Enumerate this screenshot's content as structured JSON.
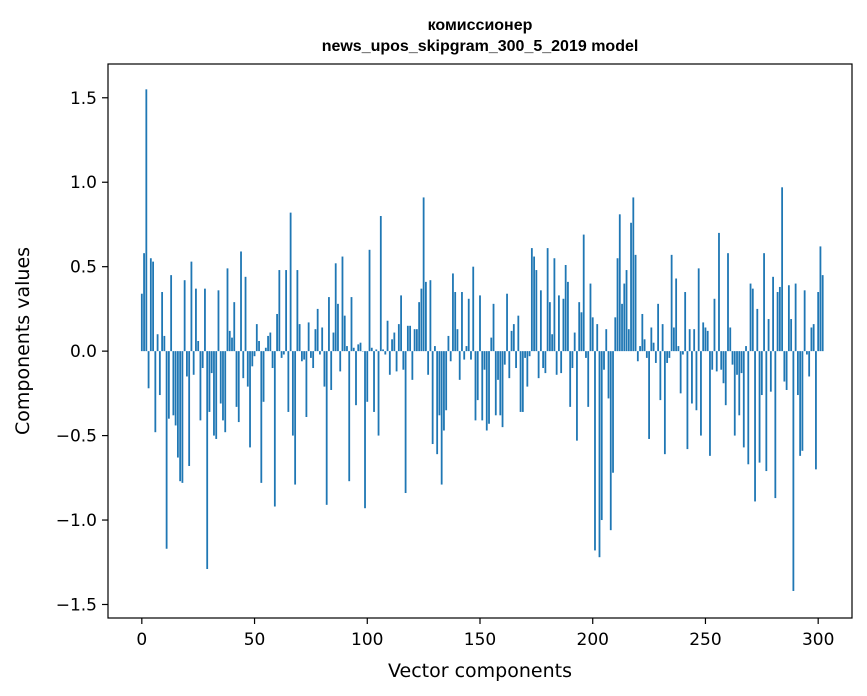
{
  "chart_data": {
    "type": "bar",
    "title_lines": [
      "комиссионер",
      "news_upos_skipgram_300_5_2019 model"
    ],
    "xlabel": "Vector components",
    "ylabel": "Components values",
    "xlim": [
      -15,
      315
    ],
    "ylim": [
      -1.58,
      1.7
    ],
    "xticks": [
      0,
      50,
      100,
      150,
      200,
      250,
      300
    ],
    "yticks": [
      -1.5,
      -1.0,
      -0.5,
      0.0,
      0.5,
      1.0,
      1.5
    ],
    "ytick_labels": [
      "−1.5",
      "−1.0",
      "−0.5",
      "0.0",
      "0.5",
      "1.0",
      "1.5"
    ],
    "bar_color": "#1f77b4",
    "values": [
      0.34,
      0.58,
      1.55,
      -0.22,
      0.55,
      0.53,
      -0.48,
      0.1,
      -0.26,
      0.35,
      0.09,
      -1.17,
      -0.4,
      0.45,
      -0.38,
      -0.44,
      -0.63,
      -0.77,
      -0.78,
      0.42,
      -0.15,
      -0.68,
      0.53,
      -0.14,
      0.37,
      0.06,
      -0.41,
      -0.1,
      0.37,
      -1.29,
      -0.36,
      -0.13,
      -0.5,
      -0.52,
      0.36,
      -0.31,
      -0.41,
      -0.48,
      0.49,
      0.12,
      0.08,
      0.29,
      -0.33,
      -0.42,
      0.59,
      -0.16,
      0.44,
      -0.21,
      -0.57,
      -0.09,
      -0.03,
      0.16,
      0.06,
      -0.78,
      -0.3,
      0.02,
      0.09,
      0.11,
      -0.1,
      -0.92,
      0.22,
      0.48,
      -0.04,
      -0.02,
      0.48,
      -0.36,
      0.82,
      -0.5,
      -0.79,
      0.48,
      0.16,
      -0.06,
      -0.05,
      -0.39,
      0.17,
      -0.04,
      -0.1,
      0.13,
      0.25,
      -0.02,
      0.14,
      -0.21,
      -0.91,
      0.32,
      -0.23,
      0.11,
      0.52,
      0.28,
      -0.12,
      0.56,
      0.21,
      0.03,
      -0.77,
      0.32,
      0.02,
      -0.32,
      0.04,
      0.05,
      0.0,
      -0.93,
      -0.3,
      0.6,
      0.02,
      -0.36,
      0.01,
      -0.5,
      0.8,
      0.01,
      -0.02,
      0.18,
      -0.14,
      0.07,
      0.11,
      -0.12,
      0.16,
      0.33,
      -0.11,
      -0.84,
      0.15,
      0.15,
      -0.17,
      0.13,
      0.13,
      0.29,
      0.37,
      0.91,
      0.41,
      -0.14,
      0.42,
      -0.55,
      0.03,
      -0.61,
      -0.38,
      -0.79,
      -0.47,
      -0.35,
      0.09,
      -0.06,
      0.46,
      0.35,
      0.13,
      -0.17,
      0.35,
      -0.05,
      0.03,
      0.31,
      -0.05,
      0.5,
      -0.41,
      -0.29,
      0.33,
      -0.41,
      -0.11,
      -0.47,
      -0.43,
      0.08,
      0.28,
      -0.38,
      -0.17,
      -0.38,
      -0.45,
      -0.08,
      0.34,
      -0.16,
      0.12,
      0.16,
      -0.1,
      0.21,
      -0.36,
      -0.36,
      -0.04,
      -0.21,
      -0.03,
      0.61,
      0.56,
      0.48,
      -0.16,
      0.36,
      -0.1,
      -0.13,
      0.61,
      0.29,
      0.1,
      0.55,
      -0.14,
      0.33,
      -0.13,
      0.31,
      0.51,
      0.41,
      -0.33,
      -0.1,
      0.11,
      -0.53,
      0.29,
      0.23,
      0.69,
      -0.04,
      -0.33,
      0.4,
      0.2,
      -1.18,
      0.16,
      -1.22,
      -1.0,
      -0.11,
      0.13,
      -0.28,
      -1.06,
      -0.72,
      0.2,
      0.55,
      0.81,
      0.28,
      0.4,
      0.48,
      0.13,
      0.76,
      0.91,
      0.57,
      -0.06,
      0.03,
      0.22,
      0.07,
      -0.04,
      -0.52,
      0.14,
      0.05,
      -0.07,
      0.28,
      -0.29,
      0.16,
      -0.61,
      -0.07,
      -0.04,
      0.57,
      0.14,
      0.43,
      0.03,
      -0.25,
      -0.02,
      0.35,
      -0.58,
      0.13,
      -0.31,
      0.13,
      -0.35,
      0.49,
      -0.5,
      0.17,
      0.14,
      0.12,
      -0.62,
      -0.11,
      0.31,
      -0.12,
      0.7,
      -0.11,
      -0.19,
      -0.32,
      0.58,
      0.14,
      -0.08,
      -0.5,
      -0.14,
      -0.38,
      -0.13,
      -0.57,
      0.03,
      -0.67,
      0.4,
      0.37,
      -0.89,
      0.25,
      -0.66,
      -0.26,
      0.58,
      -0.71,
      0.19,
      -0.24,
      0.44,
      -0.87,
      0.35,
      0.38,
      0.97,
      -0.18,
      -0.23,
      0.39,
      0.19,
      -1.42,
      0.4,
      -0.26,
      -0.62,
      -0.59,
      0.36,
      -0.02,
      -0.15,
      0.14,
      0.16,
      -0.7,
      0.35,
      0.62,
      0.45
    ]
  }
}
